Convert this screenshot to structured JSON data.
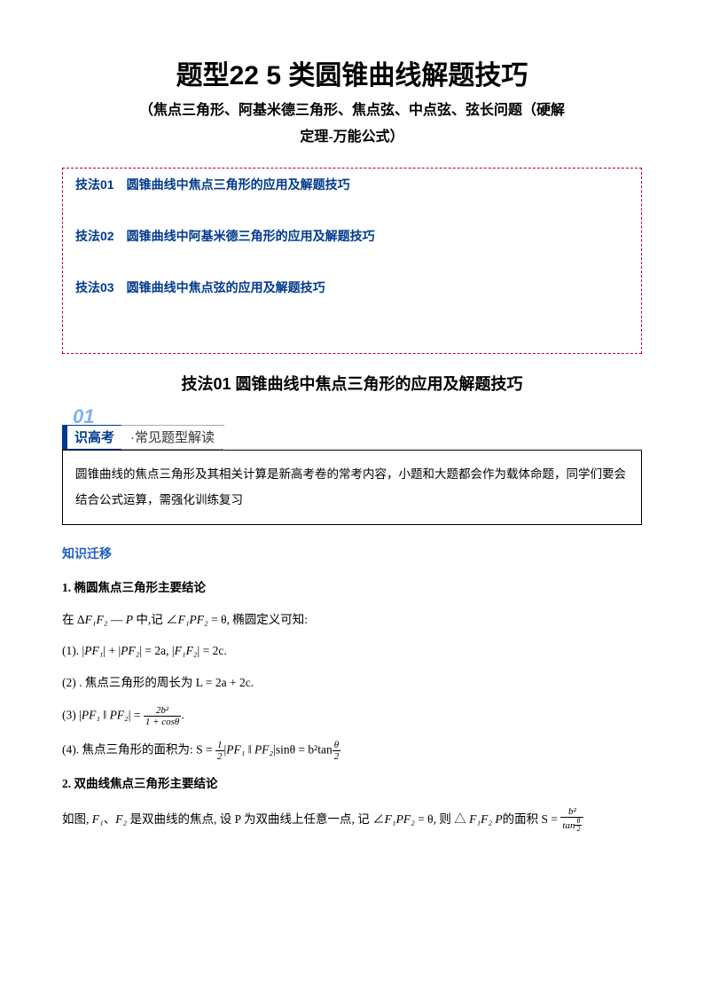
{
  "title": "题型22 5 类圆锥曲线解题技巧",
  "subtitle_line1": "（焦点三角形、阿基米德三角形、焦点弦、中点弦、弦长问题（硬解",
  "subtitle_line2": "定理-万能公式）",
  "nav": {
    "items": [
      "技法01　圆锥曲线中焦点三角形的应用及解题技巧",
      "技法02　圆锥曲线中阿基米德三角形的应用及解题技巧",
      "技法03　圆锥曲线中焦点弦的应用及解题技巧"
    ]
  },
  "section1_title": "技法01 圆锥曲线中焦点三角形的应用及解题技巧",
  "badge": {
    "num": "01",
    "left": "识高考",
    "right": "·常见题型解读"
  },
  "info_box": "圆锥曲线的焦点三角形及其相关计算是新高考卷的常考内容，小题和大题都会作为载体命题，同学们要会结合公式运算，需强化训练复习",
  "blue_head": "知识迁移",
  "h1": "1. 椭圆焦点三角形主要结论",
  "p_intro": "在 Δ",
  "p_intro_mid": " 中,记 ∠",
  "p_intro_end": " = θ, 椭圆定义可知:",
  "p1_a": "(1). |",
  "p1_b": "| + |",
  "p1_c": "| = 2a, |",
  "p1_d": "| = 2c.",
  "p2": "(2) . 焦点三角形的周长为  L = 2a + 2c.",
  "p3_a": "(3) |",
  "p3_b": " ‖ ",
  "p3_c": "| = ",
  "frac3": {
    "num": "2b²",
    "den": "1 + cosθ"
  },
  "p4_a": "(4). 焦点三角形的面积为:  S = ",
  "frac4a": {
    "num": "1",
    "den": "2"
  },
  "p4_b": "|",
  "p4_c": " ‖ ",
  "p4_d": "|sinθ = b²tan",
  "frac4b": {
    "num": "θ",
    "den": "2"
  },
  "h2": "2. 双曲线焦点三角形主要结论",
  "p5_a": "如图, ",
  "p5_b": "、",
  "p5_c": " 是双曲线的焦点, 设  P 为双曲线上任意一点, 记 ∠",
  "p5_d": " = θ, 则  △ ",
  "p5_e": "的面积 S = ",
  "frac5": {
    "num": "b²",
    "den": "tan"
  },
  "frac5sub": {
    "num": "θ",
    "den": "2"
  },
  "pf1": "PF₁",
  "pf2": "PF₂",
  "f1f2": "F₁F₂",
  "f1pf2": "F₁PF₂",
  "f1": "F₁",
  "f2": "F₂",
  "colors": {
    "title": "#000000",
    "nav_border": "#c00020",
    "nav_text": "#003a8c",
    "badge_num": "#7bb5e8",
    "blue": "#1f5fbf"
  }
}
